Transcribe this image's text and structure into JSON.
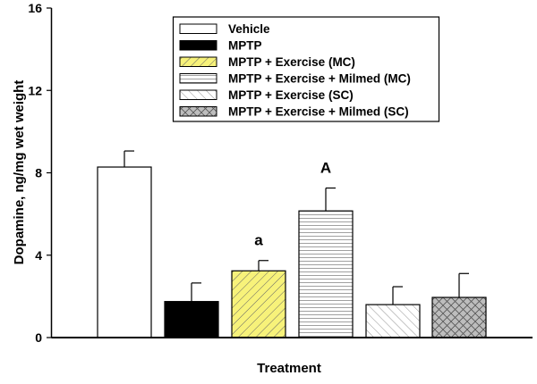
{
  "chart_data": {
    "type": "bar",
    "title": "",
    "xlabel": "Treatment",
    "ylabel": "Dopamine, ng/mg wet weight",
    "ylim": [
      0,
      16
    ],
    "yticks": [
      "0",
      "4",
      "8",
      "12",
      "16"
    ],
    "yticks_values": [
      0,
      4,
      8,
      12,
      16
    ],
    "grid": false,
    "legend_position": "top-center",
    "series": [
      {
        "name": "Vehicle",
        "value": 8.28,
        "error": 0.78,
        "fill": "#ffffff",
        "pattern": "none",
        "annotation": ""
      },
      {
        "name": "MPTP",
        "value": 1.75,
        "error": 0.9,
        "fill": "#000000",
        "pattern": "solid",
        "annotation": ""
      },
      {
        "name": "MPTP + Exercise (MC)",
        "value": 3.24,
        "error": 0.5,
        "fill": "#f7f27a",
        "pattern": "diagonal-up",
        "annotation": "a"
      },
      {
        "name": "MPTP + Exercise + Milmed (MC)",
        "value": 6.15,
        "error": 1.11,
        "fill": "#ffffff",
        "pattern": "horizontal",
        "annotation": "A"
      },
      {
        "name": "MPTP + Exercise (SC)",
        "value": 1.6,
        "error": 0.87,
        "fill": "#ffffff",
        "pattern": "diagonal-down",
        "annotation": ""
      },
      {
        "name": "MPTP + Exercise + Milmed (SC)",
        "value": 1.95,
        "error": 1.16,
        "fill": "#bdbdbd",
        "pattern": "crosshatch",
        "annotation": ""
      }
    ]
  }
}
